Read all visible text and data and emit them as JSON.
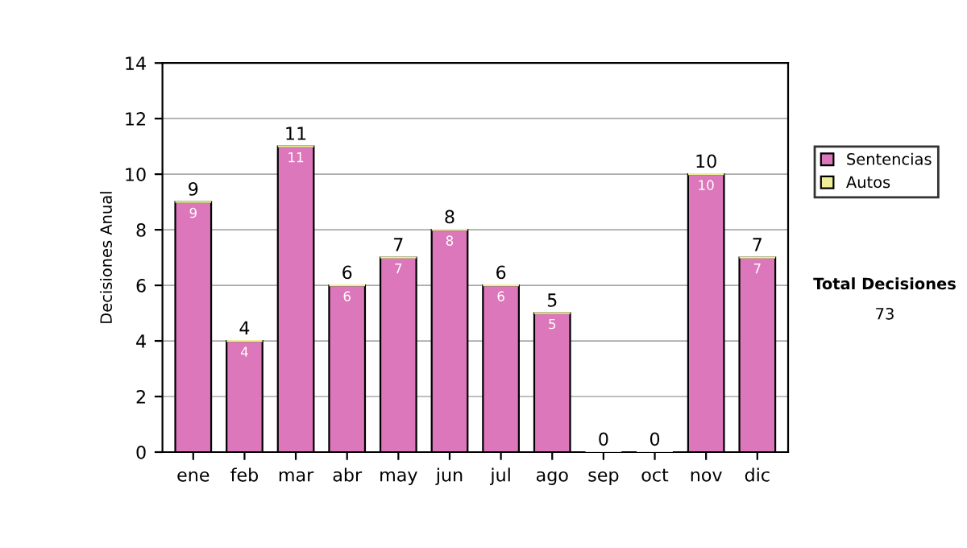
{
  "chart_data": {
    "type": "bar",
    "ylabel": "Decisiones Anual",
    "stacked": true,
    "categories": [
      "ene",
      "feb",
      "mar",
      "abr",
      "may",
      "jun",
      "jul",
      "ago",
      "sep",
      "oct",
      "nov",
      "dic"
    ],
    "series": [
      {
        "name": "Sentencias",
        "color": "#dd77bb",
        "values": [
          9,
          4,
          11,
          6,
          7,
          8,
          6,
          5,
          0,
          0,
          10,
          7
        ],
        "value_labels": [
          "9",
          "4",
          "11",
          "6",
          "7",
          "8",
          "6",
          "5",
          null,
          null,
          "10",
          "7"
        ]
      },
      {
        "name": "Autos",
        "color": "#eeee99",
        "values": [
          0,
          0,
          0,
          0,
          0,
          0,
          0,
          0,
          0,
          0,
          0,
          0
        ]
      }
    ],
    "totals": [
      "9",
      "4",
      "11",
      "6",
      "7",
      "8",
      "6",
      "5",
      "0",
      "0",
      "10",
      "7"
    ],
    "ylim": [
      0,
      14
    ],
    "yticks": [
      0,
      2,
      4,
      6,
      8,
      10,
      12,
      14
    ],
    "grid": "y",
    "legend": "right",
    "annotations": [
      "Total Decisiones",
      "73"
    ]
  }
}
